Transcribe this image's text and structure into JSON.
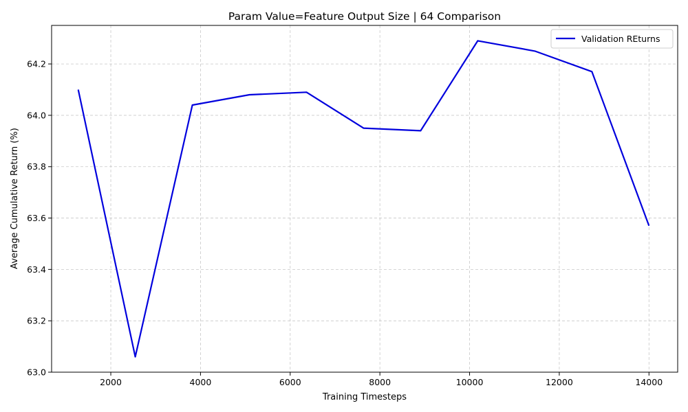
{
  "chart_data": {
    "type": "line",
    "title": "Param Value=Feature Output Size | 64 Comparison",
    "xlabel": "Training Timesteps",
    "ylabel": "Average Cumulative Return (%)",
    "xlim": [
      680,
      14640
    ],
    "ylim": [
      63.0,
      64.35
    ],
    "xticks": [
      2000,
      4000,
      6000,
      8000,
      10000,
      12000,
      14000
    ],
    "yticks": [
      63.0,
      63.2,
      63.4,
      63.6,
      63.8,
      64.0,
      64.2
    ],
    "grid": true,
    "legend_position": "top-right",
    "series": [
      {
        "name": "Validation REturns",
        "color": "#0000dd",
        "x": [
          1273,
          2545,
          3818,
          5091,
          6364,
          7636,
          8909,
          10182,
          11455,
          12727,
          14000
        ],
        "y": [
          64.1,
          63.06,
          64.04,
          64.08,
          64.09,
          63.95,
          63.94,
          64.29,
          64.25,
          64.17,
          63.57
        ]
      }
    ]
  }
}
